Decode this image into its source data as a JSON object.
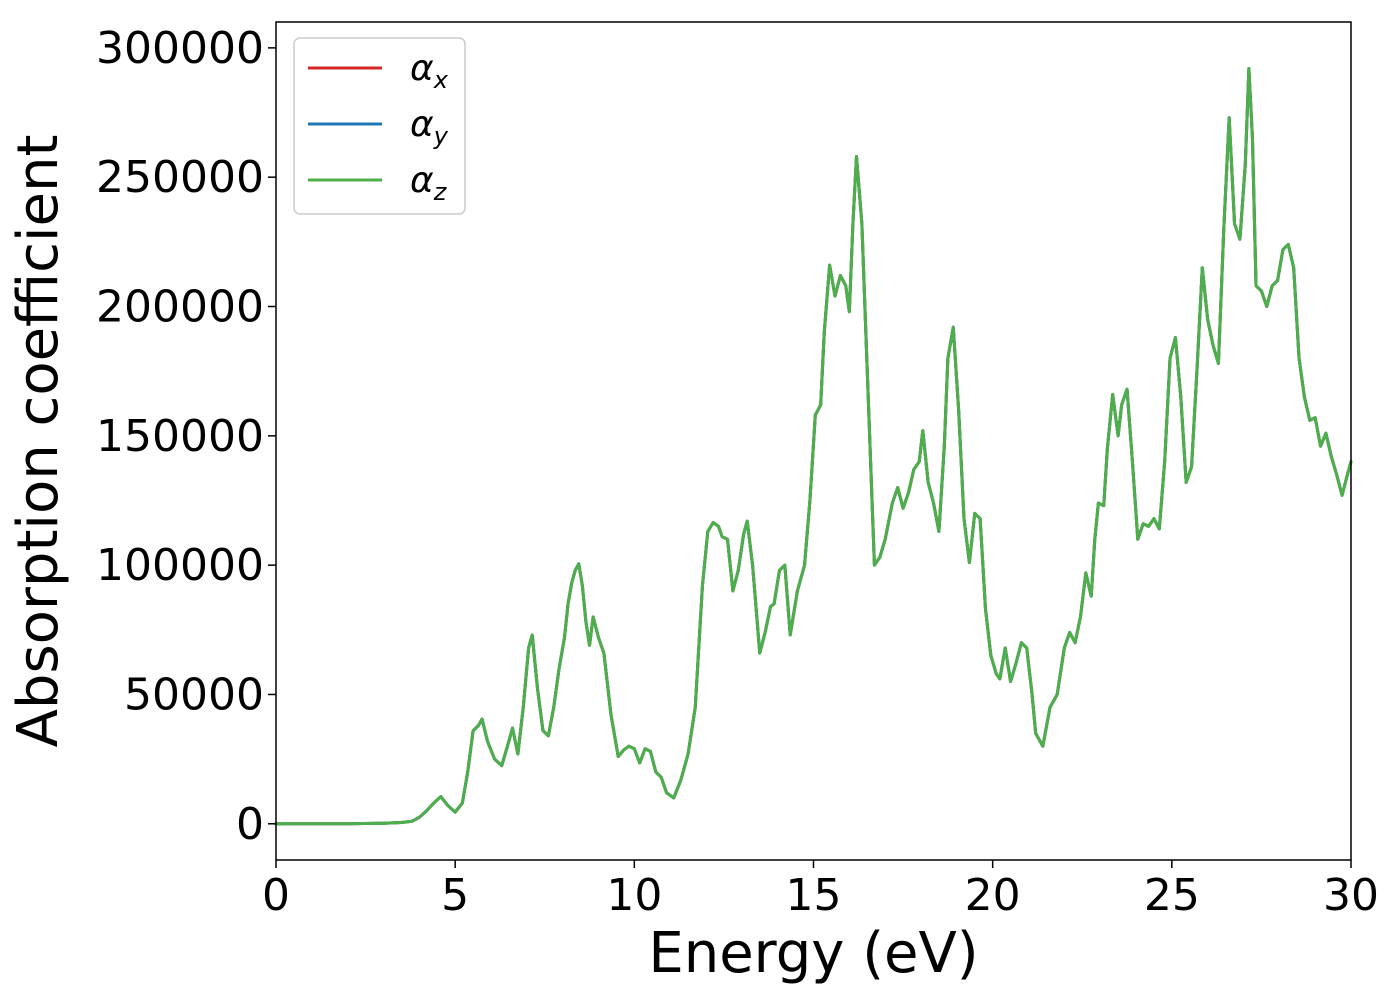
{
  "chart_data": {
    "type": "line",
    "title": "",
    "xlabel": "Energy (eV)",
    "ylabel": "Absorption coefficient",
    "xlim": [
      0,
      30
    ],
    "ylim": [
      -14000,
      310000
    ],
    "xticks": [
      0,
      5,
      10,
      15,
      20,
      25,
      30
    ],
    "xtick_labels": [
      "0",
      "5",
      "10",
      "15",
      "20",
      "25",
      "30"
    ],
    "yticks": [
      0,
      50000,
      100000,
      150000,
      200000,
      250000,
      300000
    ],
    "ytick_labels": [
      "0",
      "50000",
      "100000",
      "150000",
      "200000",
      "250000",
      "300000"
    ],
    "grid": false,
    "legend_position": "top-left",
    "series": [
      {
        "name": "αx",
        "legend_symbol": "α",
        "legend_sub": "x",
        "color": "#d62728",
        "x": [
          0,
          1,
          2,
          3,
          3.5,
          3.8,
          4.0,
          4.2,
          4.4,
          4.6,
          4.8,
          5.0,
          5.2,
          5.35,
          5.5,
          5.65,
          5.75,
          5.9,
          6.1,
          6.3,
          6.5,
          6.6,
          6.75,
          6.9,
          7.05,
          7.15,
          7.3,
          7.45,
          7.6,
          7.75,
          7.9,
          8.05,
          8.15,
          8.25,
          8.35,
          8.45,
          8.55,
          8.65,
          8.75,
          8.85,
          9.0,
          9.15,
          9.35,
          9.55,
          9.7,
          9.85,
          10.0,
          10.15,
          10.3,
          10.45,
          10.6,
          10.75,
          10.9,
          11.1,
          11.3,
          11.5,
          11.7,
          11.9,
          12.05,
          12.2,
          12.35,
          12.45,
          12.6,
          12.75,
          12.9,
          13.05,
          13.15,
          13.3,
          13.5,
          13.65,
          13.8,
          13.9,
          14.05,
          14.2,
          14.35,
          14.55,
          14.75,
          14.9,
          15.05,
          15.2,
          15.3,
          15.45,
          15.6,
          15.75,
          15.9,
          16.0,
          16.1,
          16.2,
          16.35,
          16.5,
          16.7,
          16.85,
          17.0,
          17.2,
          17.35,
          17.5,
          17.65,
          17.8,
          17.95,
          18.05,
          18.2,
          18.35,
          18.5,
          18.65,
          18.75,
          18.9,
          19.05,
          19.2,
          19.35,
          19.5,
          19.65,
          19.8,
          19.95,
          20.1,
          20.2,
          20.35,
          20.5,
          20.65,
          20.8,
          20.95,
          21.1,
          21.2,
          21.4,
          21.6,
          21.8,
          22.0,
          22.15,
          22.3,
          22.45,
          22.6,
          22.75,
          22.85,
          22.95,
          23.1,
          23.2,
          23.35,
          23.5,
          23.6,
          23.75,
          23.9,
          24.05,
          24.2,
          24.35,
          24.5,
          24.65,
          24.8,
          24.95,
          25.1,
          25.25,
          25.4,
          25.55,
          25.7,
          25.85,
          26.0,
          26.15,
          26.3,
          26.45,
          26.6,
          26.75,
          26.9,
          27.05,
          27.15,
          27.25,
          27.35,
          27.5,
          27.65,
          27.8,
          27.95,
          28.1,
          28.25,
          28.4,
          28.55,
          28.7,
          28.85,
          29.0,
          29.15,
          29.3,
          29.45,
          29.6,
          29.75,
          29.9,
          30.0
        ],
        "y": [
          0,
          0,
          0,
          200,
          500,
          1000,
          2500,
          5000,
          8000,
          10500,
          7000,
          4500,
          8000,
          20000,
          36000,
          38000,
          40500,
          32000,
          25000,
          22500,
          32000,
          37000,
          27000,
          45000,
          68000,
          73000,
          52000,
          36000,
          34000,
          45000,
          60000,
          72000,
          85000,
          93000,
          98000,
          100500,
          92000,
          78000,
          69000,
          80000,
          72000,
          66000,
          42000,
          26000,
          28500,
          30000,
          29000,
          23500,
          29000,
          28000,
          20000,
          18000,
          12000,
          10000,
          17000,
          27000,
          45000,
          92000,
          113000,
          116500,
          115000,
          111000,
          110000,
          90000,
          98000,
          112000,
          117000,
          100000,
          66000,
          74000,
          84000,
          85000,
          98000,
          100000,
          73000,
          90000,
          100000,
          125000,
          158000,
          162000,
          190000,
          216000,
          204000,
          212000,
          208000,
          198000,
          232000,
          258000,
          232000,
          175000,
          100000,
          103000,
          110000,
          124000,
          130000,
          122000,
          128000,
          137000,
          140000,
          152000,
          132000,
          124000,
          113000,
          146000,
          180000,
          192000,
          160000,
          118000,
          101000,
          120000,
          118000,
          83000,
          65000,
          58000,
          56000,
          68000,
          55000,
          62000,
          70000,
          68000,
          50000,
          35000,
          30000,
          45000,
          50000,
          68000,
          74000,
          70000,
          80000,
          97000,
          88000,
          110000,
          124000,
          123000,
          145000,
          166000,
          150000,
          162000,
          168000,
          140000,
          110000,
          116000,
          115000,
          118000,
          114000,
          140000,
          180000,
          188000,
          165000,
          132000,
          138000,
          175000,
          215000,
          195000,
          185000,
          178000,
          230000,
          273000,
          232000,
          226000,
          255000,
          292000,
          265000,
          208000,
          206000,
          200000,
          208000,
          210000,
          222000,
          224000,
          215000,
          180000,
          165000,
          156000,
          157000,
          146000,
          151000,
          142000,
          135000,
          127000,
          135000,
          140000
        ]
      },
      {
        "name": "αy",
        "legend_symbol": "α",
        "legend_sub": "y",
        "color": "#1f77b4",
        "x": [
          0,
          1,
          2,
          3,
          3.5,
          3.8,
          4.0,
          4.2,
          4.4,
          4.6,
          4.8,
          5.0,
          5.2,
          5.35,
          5.5,
          5.65,
          5.75,
          5.9,
          6.1,
          6.3,
          6.5,
          6.6,
          6.75,
          6.9,
          7.05,
          7.15,
          7.3,
          7.45,
          7.6,
          7.75,
          7.9,
          8.05,
          8.15,
          8.25,
          8.35,
          8.45,
          8.55,
          8.65,
          8.75,
          8.85,
          9.0,
          9.15,
          9.35,
          9.55,
          9.7,
          9.85,
          10.0,
          10.15,
          10.3,
          10.45,
          10.6,
          10.75,
          10.9,
          11.1,
          11.3,
          11.5,
          11.7,
          11.9,
          12.05,
          12.2,
          12.35,
          12.45,
          12.6,
          12.75,
          12.9,
          13.05,
          13.15,
          13.3,
          13.5,
          13.65,
          13.8,
          13.9,
          14.05,
          14.2,
          14.35,
          14.55,
          14.75,
          14.9,
          15.05,
          15.2,
          15.3,
          15.45,
          15.6,
          15.75,
          15.9,
          16.0,
          16.1,
          16.2,
          16.35,
          16.5,
          16.7,
          16.85,
          17.0,
          17.2,
          17.35,
          17.5,
          17.65,
          17.8,
          17.95,
          18.05,
          18.2,
          18.35,
          18.5,
          18.65,
          18.75,
          18.9,
          19.05,
          19.2,
          19.35,
          19.5,
          19.65,
          19.8,
          19.95,
          20.1,
          20.2,
          20.35,
          20.5,
          20.65,
          20.8,
          20.95,
          21.1,
          21.2,
          21.4,
          21.6,
          21.8,
          22.0,
          22.15,
          22.3,
          22.45,
          22.6,
          22.75,
          22.85,
          22.95,
          23.1,
          23.2,
          23.35,
          23.5,
          23.6,
          23.75,
          23.9,
          24.05,
          24.2,
          24.35,
          24.5,
          24.65,
          24.8,
          24.95,
          25.1,
          25.25,
          25.4,
          25.55,
          25.7,
          25.85,
          26.0,
          26.15,
          26.3,
          26.45,
          26.6,
          26.75,
          26.9,
          27.05,
          27.15,
          27.25,
          27.35,
          27.5,
          27.65,
          27.8,
          27.95,
          28.1,
          28.25,
          28.4,
          28.55,
          28.7,
          28.85,
          29.0,
          29.15,
          29.3,
          29.45,
          29.6,
          29.75,
          29.9,
          30.0
        ],
        "y": [
          0,
          0,
          0,
          200,
          500,
          1000,
          2500,
          5000,
          8000,
          10500,
          7000,
          4500,
          8000,
          20000,
          36000,
          38000,
          40500,
          32000,
          25000,
          22500,
          32000,
          37000,
          27000,
          45000,
          68000,
          73000,
          52000,
          36000,
          34000,
          45000,
          60000,
          72000,
          85000,
          93000,
          98000,
          100500,
          92000,
          78000,
          69000,
          80000,
          72000,
          66000,
          42000,
          26000,
          28500,
          30000,
          29000,
          23500,
          29000,
          28000,
          20000,
          18000,
          12000,
          10000,
          17000,
          27000,
          45000,
          92000,
          113000,
          116500,
          115000,
          111000,
          110000,
          90000,
          98000,
          112000,
          117000,
          100000,
          66000,
          74000,
          84000,
          85000,
          98000,
          100000,
          73000,
          90000,
          100000,
          125000,
          158000,
          162000,
          190000,
          216000,
          204000,
          212000,
          208000,
          198000,
          232000,
          258000,
          232000,
          175000,
          100000,
          103000,
          110000,
          124000,
          130000,
          122000,
          128000,
          137000,
          140000,
          152000,
          132000,
          124000,
          113000,
          146000,
          180000,
          192000,
          160000,
          118000,
          101000,
          120000,
          118000,
          83000,
          65000,
          58000,
          56000,
          68000,
          55000,
          62000,
          70000,
          68000,
          50000,
          35000,
          30000,
          45000,
          50000,
          68000,
          74000,
          70000,
          80000,
          97000,
          88000,
          110000,
          124000,
          123000,
          145000,
          166000,
          150000,
          162000,
          168000,
          140000,
          110000,
          116000,
          115000,
          118000,
          114000,
          140000,
          180000,
          188000,
          165000,
          132000,
          138000,
          175000,
          215000,
          195000,
          185000,
          178000,
          230000,
          273000,
          232000,
          226000,
          255000,
          292000,
          265000,
          208000,
          206000,
          200000,
          208000,
          210000,
          222000,
          224000,
          215000,
          180000,
          165000,
          156000,
          157000,
          146000,
          151000,
          142000,
          135000,
          127000,
          135000,
          140000
        ]
      },
      {
        "name": "αz",
        "legend_symbol": "α",
        "legend_sub": "z",
        "color": "#4daf4a",
        "x": [
          0,
          1,
          2,
          3,
          3.5,
          3.8,
          4.0,
          4.2,
          4.4,
          4.6,
          4.8,
          5.0,
          5.2,
          5.35,
          5.5,
          5.65,
          5.75,
          5.9,
          6.1,
          6.3,
          6.5,
          6.6,
          6.75,
          6.9,
          7.05,
          7.15,
          7.3,
          7.45,
          7.6,
          7.75,
          7.9,
          8.05,
          8.15,
          8.25,
          8.35,
          8.45,
          8.55,
          8.65,
          8.75,
          8.85,
          9.0,
          9.15,
          9.35,
          9.55,
          9.7,
          9.85,
          10.0,
          10.15,
          10.3,
          10.45,
          10.6,
          10.75,
          10.9,
          11.1,
          11.3,
          11.5,
          11.7,
          11.9,
          12.05,
          12.2,
          12.35,
          12.45,
          12.6,
          12.75,
          12.9,
          13.05,
          13.15,
          13.3,
          13.5,
          13.65,
          13.8,
          13.9,
          14.05,
          14.2,
          14.35,
          14.55,
          14.75,
          14.9,
          15.05,
          15.2,
          15.3,
          15.45,
          15.6,
          15.75,
          15.9,
          16.0,
          16.1,
          16.2,
          16.35,
          16.5,
          16.7,
          16.85,
          17.0,
          17.2,
          17.35,
          17.5,
          17.65,
          17.8,
          17.95,
          18.05,
          18.2,
          18.35,
          18.5,
          18.65,
          18.75,
          18.9,
          19.05,
          19.2,
          19.35,
          19.5,
          19.65,
          19.8,
          19.95,
          20.1,
          20.2,
          20.35,
          20.5,
          20.65,
          20.8,
          20.95,
          21.1,
          21.2,
          21.4,
          21.6,
          21.8,
          22.0,
          22.15,
          22.3,
          22.45,
          22.6,
          22.75,
          22.85,
          22.95,
          23.1,
          23.2,
          23.35,
          23.5,
          23.6,
          23.75,
          23.9,
          24.05,
          24.2,
          24.35,
          24.5,
          24.65,
          24.8,
          24.95,
          25.1,
          25.25,
          25.4,
          25.55,
          25.7,
          25.85,
          26.0,
          26.15,
          26.3,
          26.45,
          26.6,
          26.75,
          26.9,
          27.05,
          27.15,
          27.25,
          27.35,
          27.5,
          27.65,
          27.8,
          27.95,
          28.1,
          28.25,
          28.4,
          28.55,
          28.7,
          28.85,
          29.0,
          29.15,
          29.3,
          29.45,
          29.6,
          29.75,
          29.9,
          30.0
        ],
        "y": [
          0,
          0,
          0,
          200,
          500,
          1000,
          2500,
          5000,
          8000,
          10500,
          7000,
          4500,
          8000,
          20000,
          36000,
          38000,
          40500,
          32000,
          25000,
          22500,
          32000,
          37000,
          27000,
          45000,
          68000,
          73000,
          52000,
          36000,
          34000,
          45000,
          60000,
          72000,
          85000,
          93000,
          98000,
          100500,
          92000,
          78000,
          69000,
          80000,
          72000,
          66000,
          42000,
          26000,
          28500,
          30000,
          29000,
          23500,
          29000,
          28000,
          20000,
          18000,
          12000,
          10000,
          17000,
          27000,
          45000,
          92000,
          113000,
          116500,
          115000,
          111000,
          110000,
          90000,
          98000,
          112000,
          117000,
          100000,
          66000,
          74000,
          84000,
          85000,
          98000,
          100000,
          73000,
          90000,
          100000,
          125000,
          158000,
          162000,
          190000,
          216000,
          204000,
          212000,
          208000,
          198000,
          232000,
          258000,
          232000,
          175000,
          100000,
          103000,
          110000,
          124000,
          130000,
          122000,
          128000,
          137000,
          140000,
          152000,
          132000,
          124000,
          113000,
          146000,
          180000,
          192000,
          160000,
          118000,
          101000,
          120000,
          118000,
          83000,
          65000,
          58000,
          56000,
          68000,
          55000,
          62000,
          70000,
          68000,
          50000,
          35000,
          30000,
          45000,
          50000,
          68000,
          74000,
          70000,
          80000,
          97000,
          88000,
          110000,
          124000,
          123000,
          145000,
          166000,
          150000,
          162000,
          168000,
          140000,
          110000,
          116000,
          115000,
          118000,
          114000,
          140000,
          180000,
          188000,
          165000,
          132000,
          138000,
          175000,
          215000,
          195000,
          185000,
          178000,
          230000,
          273000,
          232000,
          226000,
          255000,
          292000,
          265000,
          208000,
          206000,
          200000,
          208000,
          210000,
          222000,
          224000,
          215000,
          180000,
          165000,
          156000,
          157000,
          146000,
          151000,
          142000,
          135000,
          127000,
          135000,
          140000
        ]
      }
    ]
  }
}
